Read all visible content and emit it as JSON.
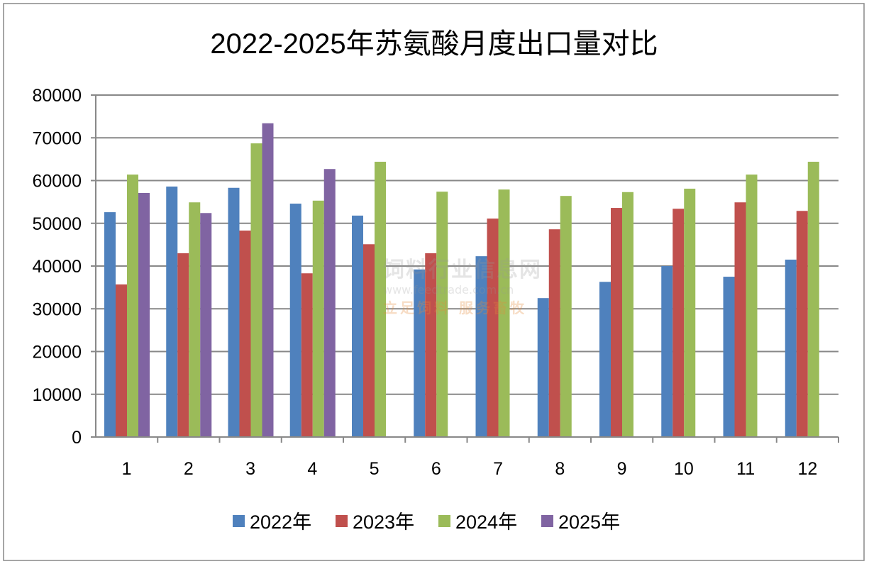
{
  "chart_data": {
    "type": "bar",
    "title": "2022-2025年苏氨酸月度出口量对比",
    "xlabel": "",
    "ylabel": "",
    "ylim": [
      0,
      80000
    ],
    "yticks": [
      0,
      10000,
      20000,
      30000,
      40000,
      50000,
      60000,
      70000,
      80000
    ],
    "grid": true,
    "legend_position": "bottom",
    "categories": [
      "1",
      "2",
      "3",
      "4",
      "5",
      "6",
      "7",
      "8",
      "9",
      "10",
      "11",
      "12"
    ],
    "series": [
      {
        "name": "2022年",
        "color": "#4F81BD",
        "values": [
          52600,
          58600,
          58300,
          54600,
          51800,
          39200,
          42300,
          32500,
          36300,
          40000,
          37500,
          41500
        ]
      },
      {
        "name": "2023年",
        "color": "#C0504D",
        "values": [
          35700,
          43000,
          48300,
          38300,
          45100,
          43000,
          51100,
          48600,
          53600,
          53400,
          54900,
          52900
        ]
      },
      {
        "name": "2024年",
        "color": "#9BBB59",
        "values": [
          61400,
          54900,
          68700,
          55300,
          64400,
          57400,
          57900,
          56400,
          57300,
          58100,
          61400,
          64400
        ]
      },
      {
        "name": "2025年",
        "color": "#8064A2",
        "values": [
          57100,
          52400,
          73400,
          62700,
          null,
          null,
          null,
          null,
          null,
          null,
          null,
          null
        ]
      }
    ]
  },
  "watermark": {
    "name": "饲料行业信息网",
    "url": "www.feedtrade.com.cn",
    "slogan": "立足饲料  服务畜牧"
  }
}
